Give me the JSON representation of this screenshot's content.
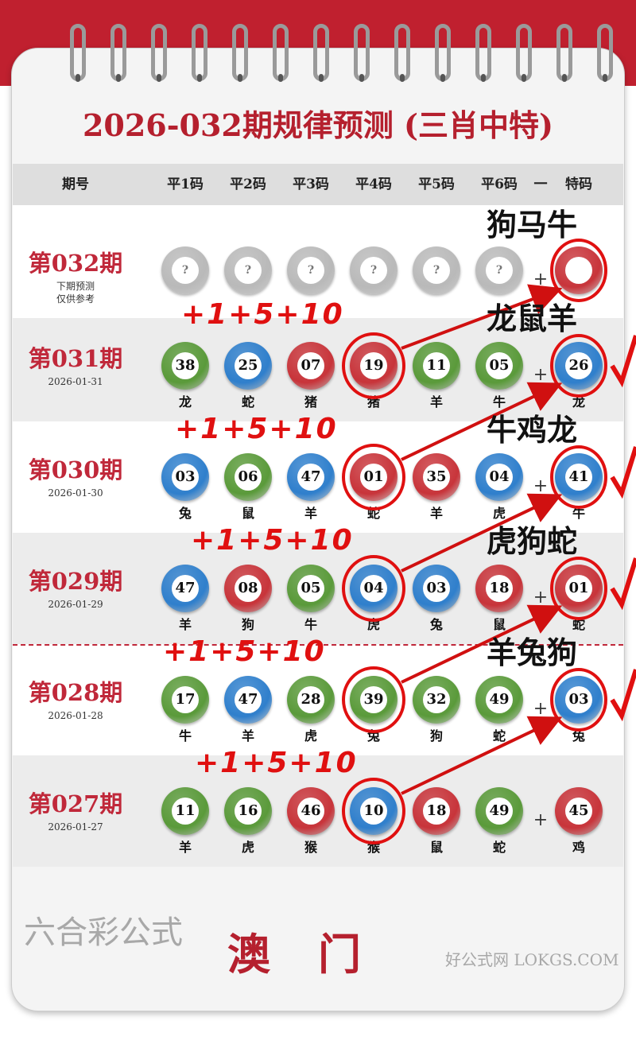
{
  "title": "2026-032期规律预测 (三肖中特)",
  "headers": [
    "期号",
    "平1码",
    "平2码",
    "平3码",
    "平4码",
    "平5码",
    "平6码",
    "一",
    "特码"
  ],
  "colors": {
    "red": "#c8343a",
    "blue": "#2f7fcc",
    "green": "#5a9a3a",
    "gray": "#b9b9b9",
    "accent": "#c0202f"
  },
  "rows": [
    {
      "period": "第032期",
      "note1": "下期预测",
      "note2": "仅供参考",
      "balls": [
        {
          "n": "?",
          "c": "gray"
        },
        {
          "n": "?",
          "c": "gray"
        },
        {
          "n": "?",
          "c": "gray"
        },
        {
          "n": "?",
          "c": "gray"
        },
        {
          "n": "?",
          "c": "gray"
        },
        {
          "n": "?",
          "c": "gray"
        },
        {
          "n": "",
          "c": "red"
        }
      ],
      "zodiacs": []
    },
    {
      "period": "第031期",
      "date": "2026-01-31",
      "balls": [
        {
          "n": "38",
          "c": "green"
        },
        {
          "n": "25",
          "c": "blue"
        },
        {
          "n": "07",
          "c": "red"
        },
        {
          "n": "19",
          "c": "red"
        },
        {
          "n": "11",
          "c": "green"
        },
        {
          "n": "05",
          "c": "green"
        },
        {
          "n": "26",
          "c": "blue"
        }
      ],
      "zodiacs": [
        "龙",
        "蛇",
        "猪",
        "猪",
        "羊",
        "牛",
        "龙"
      ]
    },
    {
      "period": "第030期",
      "date": "2026-01-30",
      "balls": [
        {
          "n": "03",
          "c": "blue"
        },
        {
          "n": "06",
          "c": "green"
        },
        {
          "n": "47",
          "c": "blue"
        },
        {
          "n": "01",
          "c": "red"
        },
        {
          "n": "35",
          "c": "red"
        },
        {
          "n": "04",
          "c": "blue"
        },
        {
          "n": "41",
          "c": "blue"
        }
      ],
      "zodiacs": [
        "兔",
        "鼠",
        "羊",
        "蛇",
        "羊",
        "虎",
        "牛"
      ]
    },
    {
      "period": "第029期",
      "date": "2026-01-29",
      "balls": [
        {
          "n": "47",
          "c": "blue"
        },
        {
          "n": "08",
          "c": "red"
        },
        {
          "n": "05",
          "c": "green"
        },
        {
          "n": "04",
          "c": "blue"
        },
        {
          "n": "03",
          "c": "blue"
        },
        {
          "n": "18",
          "c": "red"
        },
        {
          "n": "01",
          "c": "red"
        }
      ],
      "zodiacs": [
        "羊",
        "狗",
        "牛",
        "虎",
        "兔",
        "鼠",
        "蛇"
      ]
    },
    {
      "period": "第028期",
      "date": "2026-01-28",
      "balls": [
        {
          "n": "17",
          "c": "green"
        },
        {
          "n": "47",
          "c": "blue"
        },
        {
          "n": "28",
          "c": "green"
        },
        {
          "n": "39",
          "c": "green"
        },
        {
          "n": "32",
          "c": "green"
        },
        {
          "n": "49",
          "c": "green"
        },
        {
          "n": "03",
          "c": "blue"
        }
      ],
      "zodiacs": [
        "牛",
        "羊",
        "虎",
        "兔",
        "狗",
        "蛇",
        "兔"
      ]
    },
    {
      "period": "第027期",
      "date": "2026-01-27",
      "balls": [
        {
          "n": "11",
          "c": "green"
        },
        {
          "n": "16",
          "c": "green"
        },
        {
          "n": "46",
          "c": "red"
        },
        {
          "n": "10",
          "c": "blue"
        },
        {
          "n": "18",
          "c": "red"
        },
        {
          "n": "49",
          "c": "green"
        },
        {
          "n": "45",
          "c": "red"
        }
      ],
      "zodiacs": [
        "羊",
        "虎",
        "猴",
        "猴",
        "鼠",
        "蛇",
        "鸡"
      ]
    }
  ],
  "plus": "+",
  "formula": "+1+5+10",
  "predictions": [
    "狗马牛",
    "龙鼠羊",
    "牛鸡龙",
    "虎狗蛇",
    "羊兔狗"
  ],
  "hits": [
    false,
    true,
    true,
    true,
    true
  ],
  "footer": "澳门",
  "watermark": {
    "main": "六合彩公式",
    "sub": "好公式网 LOKGS.COM"
  }
}
